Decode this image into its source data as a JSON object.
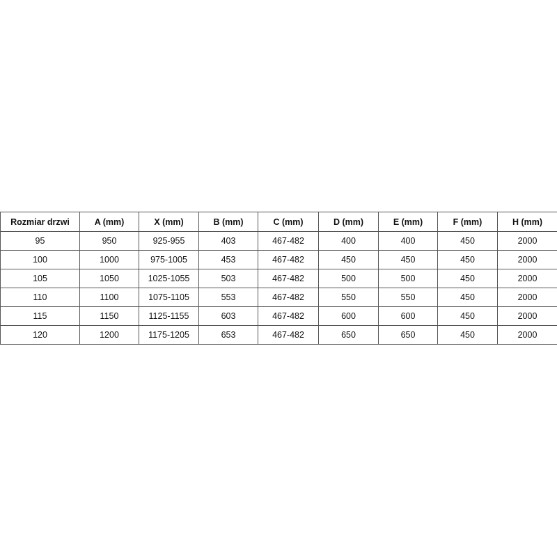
{
  "table": {
    "headers": [
      "Rozmiar drzwi",
      "A (mm)",
      "X (mm)",
      "B (mm)",
      "C (mm)",
      "D (mm)",
      "E (mm)",
      "F (mm)",
      "H (mm)"
    ],
    "rows": [
      [
        "95",
        "950",
        "925-955",
        "403",
        "467-482",
        "400",
        "400",
        "450",
        "2000"
      ],
      [
        "100",
        "1000",
        "975-1005",
        "453",
        "467-482",
        "450",
        "450",
        "450",
        "2000"
      ],
      [
        "105",
        "1050",
        "1025-1055",
        "503",
        "467-482",
        "500",
        "500",
        "450",
        "2000"
      ],
      [
        "110",
        "1100",
        "1075-1105",
        "553",
        "467-482",
        "550",
        "550",
        "450",
        "2000"
      ],
      [
        "115",
        "1150",
        "1125-1155",
        "603",
        "467-482",
        "600",
        "600",
        "450",
        "2000"
      ],
      [
        "120",
        "1200",
        "1175-1205",
        "653",
        "467-482",
        "650",
        "650",
        "450",
        "2000"
      ]
    ]
  }
}
